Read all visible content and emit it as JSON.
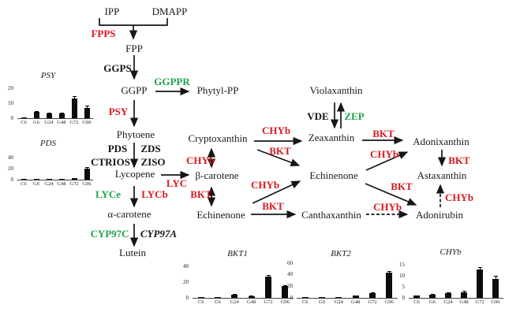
{
  "colors": {
    "enzyme_red": "#d71920",
    "enzyme_green": "#1fa24a",
    "text_black": "#1a1a1a"
  },
  "nodes": {
    "ipp": "IPP",
    "dmapp": "DMAPP",
    "fpp": "FPP",
    "ggpp": "GGPP",
    "phytyl_pp": "Phytyl-PP",
    "phytoene": "Phytoene",
    "lycopene": "Lycopene",
    "beta_carotene": "β-carotene",
    "alpha_carotene": "α-carotene",
    "lutein": "Lutein",
    "cryptoxanthin": "Cryptoxanthin",
    "echinenone_mid": "Echinenone",
    "echinenone_right": "Echinenone",
    "canthaxanthin": "Canthaxanthin",
    "violaxanthin": "Violaxanthin",
    "zeaxanthin": "Zeaxanthin",
    "adonixanthin": "Adonixanthin",
    "astaxanthin": "Astaxanthin",
    "adonirubin": "Adonirubin"
  },
  "enzymes": {
    "fpps": "FPPS",
    "ggps": "GGPS",
    "ggppr": "GGPPR",
    "psy": "PSY",
    "pds": "PDS",
    "zds": "ZDS",
    "ctrios": "CTRIOS",
    "ziso": "ZISO",
    "lyc": "LYC",
    "lyce": "LYCe",
    "lycb": "LYCb",
    "cyp97c": "CYP97C",
    "cyp97a": "CYP97A",
    "chyb": "CHYb",
    "bkt": "BKT",
    "vde": "VDE",
    "zep": "ZEP"
  },
  "chart_data": [
    {
      "type": "bar",
      "id": "PSY",
      "title": "PSY",
      "categories": [
        "C6",
        "G6",
        "G24",
        "G48",
        "G72",
        "G96"
      ],
      "values": [
        0.5,
        4,
        3,
        3,
        13,
        7
      ],
      "errors": [
        0.2,
        1,
        0.7,
        0.7,
        1.5,
        1.5
      ],
      "ylim": [
        0,
        20
      ],
      "yticks": [
        20,
        10,
        0
      ],
      "xlabel": "",
      "ylabel": ""
    },
    {
      "type": "bar",
      "id": "PDS",
      "title": "PDS",
      "categories": [
        "C6",
        "G6",
        "G24",
        "G48",
        "G72",
        "G96"
      ],
      "values": [
        0.5,
        2,
        1.5,
        2,
        2.5,
        20
      ],
      "errors": [
        0.2,
        0.5,
        0.4,
        0.5,
        0.6,
        3
      ],
      "ylim": [
        0,
        40
      ],
      "yticks": [
        40,
        20,
        0
      ],
      "xlabel": "",
      "ylabel": ""
    },
    {
      "type": "bar",
      "id": "BKT1",
      "title": "BKT1",
      "categories": [
        "C6",
        "G6",
        "G24",
        "G48",
        "G72",
        "G96"
      ],
      "values": [
        0.5,
        1.5,
        4,
        2.5,
        27,
        15
      ],
      "errors": [
        0.2,
        0.4,
        1,
        0.6,
        2,
        1.2
      ],
      "ylim": [
        0,
        40
      ],
      "yticks": [
        40,
        20,
        0
      ],
      "xlabel": "",
      "ylabel": ""
    },
    {
      "type": "bar",
      "id": "BKT2",
      "title": "BKT2",
      "categories": [
        "C6",
        "G6",
        "G24",
        "G48",
        "G72",
        "G96"
      ],
      "values": [
        0.5,
        1,
        2,
        3.5,
        8,
        43
      ],
      "errors": [
        0.2,
        0.3,
        0.5,
        0.6,
        1,
        3
      ],
      "ylim": [
        0,
        60
      ],
      "yticks": [
        60,
        40,
        20,
        0
      ],
      "xlabel": "",
      "ylabel": ""
    },
    {
      "type": "bar",
      "id": "CHYb",
      "title": "CHYb",
      "categories": [
        "C6",
        "G6",
        "G24",
        "G48",
        "G72",
        "G96"
      ],
      "values": [
        1,
        1.5,
        2,
        2.5,
        13,
        8.5
      ],
      "errors": [
        0.2,
        0.3,
        0.4,
        0.6,
        1,
        1.5
      ],
      "ylim": [
        0,
        15
      ],
      "yticks": [
        15,
        10,
        5,
        0
      ],
      "xlabel": "",
      "ylabel": ""
    }
  ]
}
